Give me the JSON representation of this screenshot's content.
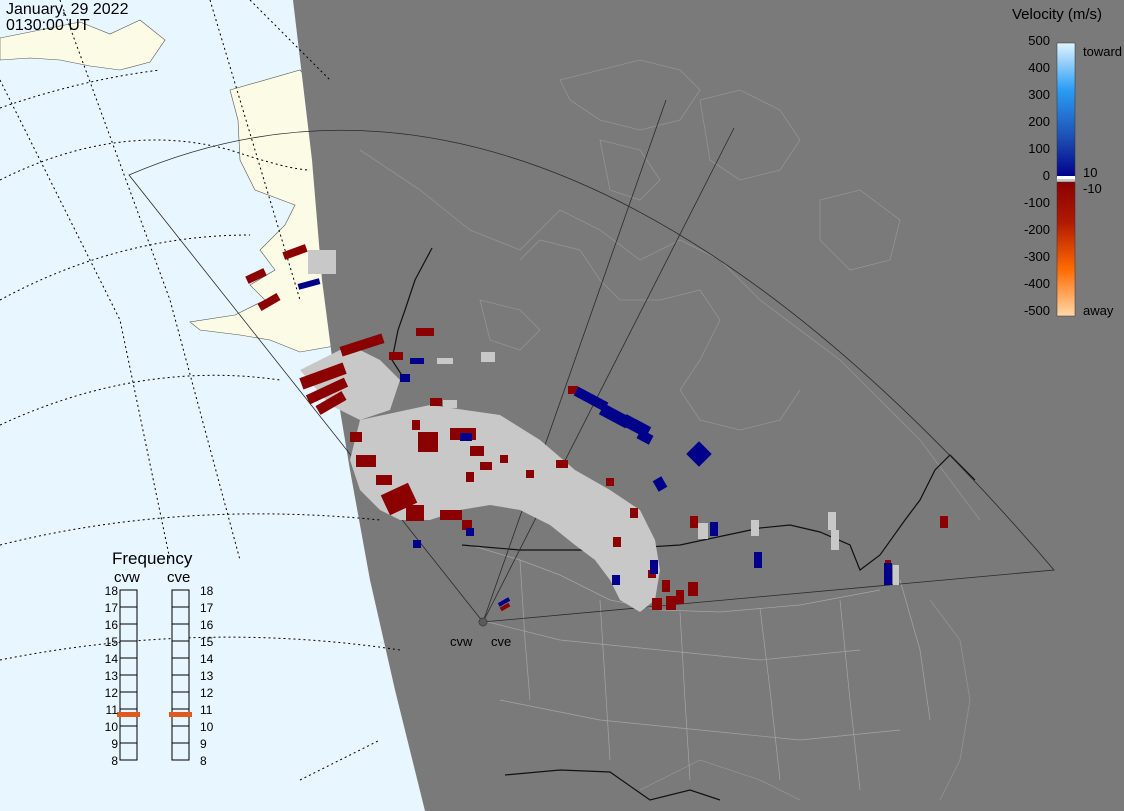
{
  "header": {
    "date": "January, 29 2022",
    "time": "0130:00 UT"
  },
  "velocity_legend": {
    "title": "Velocity (m/s)",
    "ticks": [
      "500",
      "400",
      "300",
      "200",
      "100",
      "0",
      "-100",
      "-200",
      "-300",
      "-400",
      "-500"
    ],
    "toward_label": "toward",
    "away_label": "away",
    "threshold_pos": "10",
    "threshold_neg": "-10",
    "colors": {
      "toward_max": "#e0f4ff",
      "toward_mid": "#1e88e5",
      "toward_min": "#00008b",
      "ground": "#c8c8c8",
      "away_min": "#8b0000",
      "away_mid": "#ff6a00",
      "away_max": "#ffd8a8"
    }
  },
  "frequency_panel": {
    "title": "Frequency",
    "radars": [
      {
        "label": "cvw",
        "selected_mhz": 11
      },
      {
        "label": "cve",
        "selected_mhz": 11
      }
    ],
    "scale": [
      "18",
      "17",
      "16",
      "15",
      "14",
      "13",
      "12",
      "11",
      "10",
      "9",
      "8"
    ],
    "marker_color": "#e05a1e"
  },
  "sites": [
    {
      "label": "cvw"
    },
    {
      "label": "cve"
    }
  ],
  "map_colors": {
    "ocean_day": "#e8f6ff",
    "land_day": "#fbfbe6",
    "night": "#7a7a7a",
    "night_coast": "#8e8e8e"
  }
}
